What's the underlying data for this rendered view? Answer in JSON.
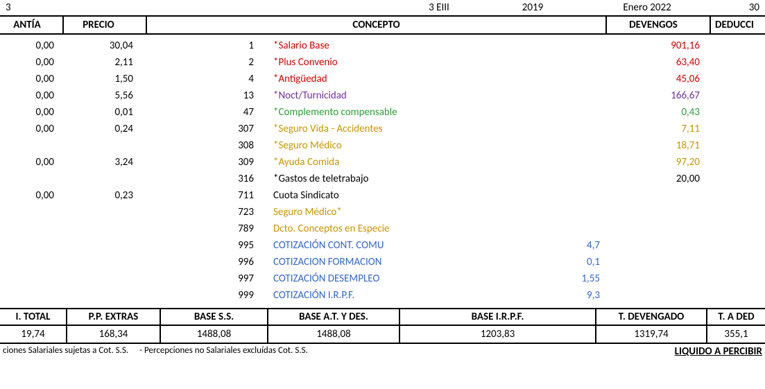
{
  "top": {
    "left_num": "3",
    "code": "3 EIII",
    "year": "2019",
    "period": "Enero 2022",
    "right_num": "30"
  },
  "headers": {
    "cuantia": "ANTÍA",
    "precio": "PRECIO",
    "concepto": "CONCEPTO",
    "devengos": "DEVENGOS",
    "deducci": "DEDUCCI"
  },
  "colors": {
    "red": "#d60000",
    "purple": "#7030a0",
    "green": "#2e9d3a",
    "gold": "#c79500",
    "black": "#000000",
    "blue": "#3366cc"
  },
  "rows": [
    {
      "cuantia": "0,00",
      "precio": "30,04",
      "code": "1",
      "concepto": "*Salario Base",
      "dev": "901,16",
      "aux": "",
      "color": "red"
    },
    {
      "cuantia": "0,00",
      "precio": "2,11",
      "code": "2",
      "concepto": "*Plus Convenio",
      "dev": "63,40",
      "aux": "",
      "color": "red"
    },
    {
      "cuantia": "0,00",
      "precio": "1,50",
      "code": "4",
      "concepto": "*Antigüedad",
      "dev": "45,06",
      "aux": "",
      "color": "red"
    },
    {
      "cuantia": "0,00",
      "precio": "5,56",
      "code": "13",
      "concepto": "*Noct/Turnicidad",
      "dev": "166,67",
      "aux": "",
      "color": "purple"
    },
    {
      "cuantia": "0,00",
      "precio": "0,01",
      "code": "47",
      "concepto": "*Complemento compensable",
      "dev": "0,43",
      "aux": "",
      "color": "green"
    },
    {
      "cuantia": "0,00",
      "precio": "0,24",
      "code": "307",
      "concepto": "*Seguro Vida - Accidentes",
      "dev": "7,11",
      "aux": "",
      "color": "gold"
    },
    {
      "cuantia": "",
      "precio": "",
      "code": "308",
      "concepto": "*Seguro Médico",
      "dev": "18,71",
      "aux": "",
      "color": "gold"
    },
    {
      "cuantia": "0,00",
      "precio": "3,24",
      "code": "309",
      "concepto": "*Ayuda Comida",
      "dev": "97,20",
      "aux": "",
      "color": "gold"
    },
    {
      "cuantia": "",
      "precio": "",
      "code": "316",
      "concepto": "*Gastos de teletrabajo",
      "dev": "20,00",
      "aux": "",
      "color": "black"
    },
    {
      "cuantia": "0,00",
      "precio": "0,23",
      "code": "711",
      "concepto": "Cuota Sindicato",
      "dev": "",
      "aux": "",
      "color": "black"
    },
    {
      "cuantia": "",
      "precio": "",
      "code": "723",
      "concepto": "Seguro Médico*",
      "dev": "",
      "aux": "",
      "color": "gold"
    },
    {
      "cuantia": "",
      "precio": "",
      "code": "789",
      "concepto": "Dcto. Conceptos en Especie",
      "dev": "",
      "aux": "",
      "color": "gold"
    },
    {
      "cuantia": "",
      "precio": "",
      "code": "995",
      "concepto": "COTIZACIÓN CONT. COMU",
      "dev": "",
      "aux": "4,7",
      "color": "blue"
    },
    {
      "cuantia": "",
      "precio": "",
      "code": "996",
      "concepto": "COTIZACION FORMACION",
      "dev": "",
      "aux": "0,1",
      "color": "blue"
    },
    {
      "cuantia": "",
      "precio": "",
      "code": "997",
      "concepto": "COTIZACIÓN DESEMPLEO",
      "dev": "",
      "aux": "1,55",
      "color": "blue"
    },
    {
      "cuantia": "",
      "precio": "",
      "code": "999",
      "concepto": "COTIZACIÓN I.R.P.F.",
      "dev": "",
      "aux": "9,3",
      "color": "blue"
    }
  ],
  "summary": {
    "headers": {
      "s1": "I. TOTAL",
      "s2": "P.P. EXTRAS",
      "s3": "BASE S.S.",
      "s4": "BASE A.T. Y DES.",
      "s5": "BASE I.R.P.F.",
      "s6": "T. DEVENGADO",
      "s7": "T. A DED"
    },
    "values": {
      "s1": "19,74",
      "s2": "168,34",
      "s3": "1488,08",
      "s4": "1488,08",
      "s5": "1203,83",
      "s6": "1319,74",
      "s7": "355,1"
    }
  },
  "footnote": {
    "left": "ciones Salariales sujetas a Cot. S.S.  - Percepciones no Salariales excluídas Cot. S.S.",
    "right": "LIQUIDO A PERCIBIR"
  }
}
